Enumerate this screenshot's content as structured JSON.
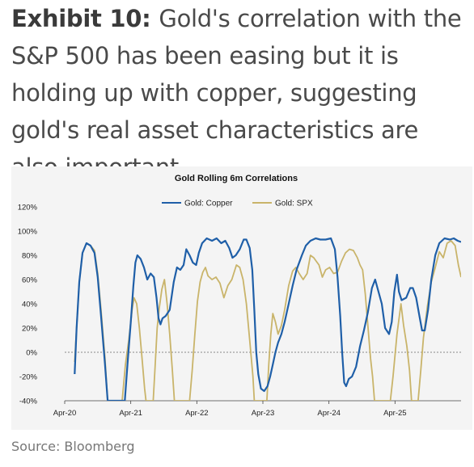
{
  "headline": {
    "exhibit": "Exhibit 10:",
    "text": "Gold's correlation with the S&P 500 has been easing but it is holding up with copper, suggesting gold's real asset characteristics are also important"
  },
  "source": "Source: Bloomberg",
  "chart_data": {
    "type": "line",
    "title": "Gold Rolling 6m Correlations",
    "ylim": [
      -40,
      120
    ],
    "y_ticks": [
      "120%",
      "100%",
      "80%",
      "60%",
      "40%",
      "20%",
      "0%",
      "-20%",
      "-40%"
    ],
    "x_ticks": [
      {
        "label": "Apr-20",
        "t": 2020.25
      },
      {
        "label": "Apr-21",
        "t": 2021.25
      },
      {
        "label": "Apr-22",
        "t": 2022.25
      },
      {
        "label": "Apr-23",
        "t": 2023.25
      },
      {
        "label": "Apr-24",
        "t": 2024.25
      },
      {
        "label": "Apr-25",
        "t": 2025.25
      }
    ],
    "xlim": [
      2020.25,
      2026.25
    ],
    "legend_position": "top-center",
    "colors": {
      "copper": "#1f5fa8",
      "spx": "#c9b46a"
    },
    "series": [
      {
        "name": "Gold: Copper",
        "points": [
          [
            2020.4,
            -18
          ],
          [
            2020.43,
            20
          ],
          [
            2020.47,
            58
          ],
          [
            2020.52,
            82
          ],
          [
            2020.58,
            90
          ],
          [
            2020.64,
            88
          ],
          [
            2020.7,
            82
          ],
          [
            2020.75,
            62
          ],
          [
            2020.8,
            30
          ],
          [
            2020.86,
            -10
          ],
          [
            2020.9,
            -40
          ],
          [
            2021.16,
            -40
          ],
          [
            2021.2,
            -10
          ],
          [
            2021.25,
            25
          ],
          [
            2021.29,
            55
          ],
          [
            2021.32,
            74
          ],
          [
            2021.35,
            80
          ],
          [
            2021.4,
            77
          ],
          [
            2021.45,
            70
          ],
          [
            2021.5,
            60
          ],
          [
            2021.55,
            65
          ],
          [
            2021.6,
            62
          ],
          [
            2021.64,
            45
          ],
          [
            2021.67,
            28
          ],
          [
            2021.7,
            23
          ],
          [
            2021.73,
            28
          ],
          [
            2021.78,
            30
          ],
          [
            2021.84,
            35
          ],
          [
            2021.9,
            58
          ],
          [
            2021.95,
            70
          ],
          [
            2022.0,
            68
          ],
          [
            2022.05,
            72
          ],
          [
            2022.09,
            85
          ],
          [
            2022.14,
            80
          ],
          [
            2022.19,
            74
          ],
          [
            2022.24,
            72
          ],
          [
            2022.28,
            82
          ],
          [
            2022.33,
            90
          ],
          [
            2022.4,
            94
          ],
          [
            2022.48,
            92
          ],
          [
            2022.55,
            94
          ],
          [
            2022.62,
            90
          ],
          [
            2022.68,
            92
          ],
          [
            2022.74,
            86
          ],
          [
            2022.79,
            78
          ],
          [
            2022.84,
            80
          ],
          [
            2022.9,
            85
          ],
          [
            2022.96,
            93
          ],
          [
            2023.0,
            93
          ],
          [
            2023.05,
            86
          ],
          [
            2023.09,
            68
          ],
          [
            2023.12,
            35
          ],
          [
            2023.15,
            0
          ],
          [
            2023.18,
            -18
          ],
          [
            2023.22,
            -30
          ],
          [
            2023.27,
            -32
          ],
          [
            2023.32,
            -28
          ],
          [
            2023.36,
            -20
          ],
          [
            2023.4,
            -10
          ],
          [
            2023.44,
            0
          ],
          [
            2023.48,
            8
          ],
          [
            2023.53,
            15
          ],
          [
            2023.58,
            25
          ],
          [
            2023.64,
            40
          ],
          [
            2023.7,
            55
          ],
          [
            2023.76,
            68
          ],
          [
            2023.84,
            80
          ],
          [
            2023.9,
            88
          ],
          [
            2023.97,
            92
          ],
          [
            2024.05,
            94
          ],
          [
            2024.12,
            93
          ],
          [
            2024.2,
            93
          ],
          [
            2024.28,
            94
          ],
          [
            2024.34,
            85
          ],
          [
            2024.38,
            62
          ],
          [
            2024.42,
            30
          ],
          [
            2024.45,
            0
          ],
          [
            2024.48,
            -25
          ],
          [
            2024.51,
            -28
          ],
          [
            2024.55,
            -22
          ],
          [
            2024.6,
            -20
          ],
          [
            2024.66,
            -12
          ],
          [
            2024.72,
            5
          ],
          [
            2024.78,
            18
          ],
          [
            2024.84,
            33
          ],
          [
            2024.9,
            53
          ],
          [
            2024.95,
            60
          ],
          [
            2025.0,
            50
          ],
          [
            2025.05,
            40
          ],
          [
            2025.1,
            20
          ],
          [
            2025.16,
            15
          ],
          [
            2025.2,
            25
          ],
          [
            2025.24,
            50
          ],
          [
            2025.28,
            64
          ],
          [
            2025.31,
            50
          ],
          [
            2025.35,
            43
          ],
          [
            2025.42,
            45
          ],
          [
            2025.48,
            53
          ],
          [
            2025.52,
            53
          ],
          [
            2025.57,
            45
          ],
          [
            2025.62,
            30
          ],
          [
            2025.66,
            18
          ],
          [
            2025.7,
            18
          ],
          [
            2025.75,
            35
          ],
          [
            2025.8,
            60
          ],
          [
            2025.86,
            80
          ],
          [
            2025.92,
            90
          ],
          [
            2026.0,
            94
          ],
          [
            2026.08,
            93
          ],
          [
            2026.14,
            94
          ],
          [
            2026.2,
            92
          ],
          [
            2026.25,
            91
          ]
        ]
      },
      {
        "name": "Gold: SPX",
        "points": [
          [
            2020.4,
            -8
          ],
          [
            2020.43,
            20
          ],
          [
            2020.47,
            58
          ],
          [
            2020.52,
            82
          ],
          [
            2020.58,
            90
          ],
          [
            2020.64,
            88
          ],
          [
            2020.7,
            84
          ],
          [
            2020.75,
            65
          ],
          [
            2020.8,
            35
          ],
          [
            2020.86,
            -5
          ],
          [
            2020.9,
            -40
          ],
          [
            2021.12,
            -40
          ],
          [
            2021.17,
            -10
          ],
          [
            2021.22,
            10
          ],
          [
            2021.27,
            35
          ],
          [
            2021.3,
            45
          ],
          [
            2021.34,
            40
          ],
          [
            2021.38,
            20
          ],
          [
            2021.42,
            -5
          ],
          [
            2021.46,
            -30
          ],
          [
            2021.48,
            -40
          ],
          [
            2021.59,
            -40
          ],
          [
            2021.62,
            -10
          ],
          [
            2021.65,
            20
          ],
          [
            2021.68,
            36
          ],
          [
            2021.72,
            52
          ],
          [
            2021.76,
            60
          ],
          [
            2021.8,
            40
          ],
          [
            2021.84,
            15
          ],
          [
            2021.88,
            -15
          ],
          [
            2021.91,
            -40
          ],
          [
            2022.14,
            -40
          ],
          [
            2022.18,
            -15
          ],
          [
            2022.22,
            15
          ],
          [
            2022.26,
            42
          ],
          [
            2022.3,
            58
          ],
          [
            2022.34,
            66
          ],
          [
            2022.38,
            70
          ],
          [
            2022.42,
            63
          ],
          [
            2022.48,
            60
          ],
          [
            2022.54,
            62
          ],
          [
            2022.6,
            57
          ],
          [
            2022.66,
            45
          ],
          [
            2022.72,
            55
          ],
          [
            2022.78,
            60
          ],
          [
            2022.85,
            72
          ],
          [
            2022.9,
            70
          ],
          [
            2022.95,
            60
          ],
          [
            2023.0,
            40
          ],
          [
            2023.05,
            10
          ],
          [
            2023.1,
            -20
          ],
          [
            2023.12,
            -40
          ],
          [
            2023.31,
            -40
          ],
          [
            2023.34,
            -10
          ],
          [
            2023.37,
            15
          ],
          [
            2023.4,
            32
          ],
          [
            2023.44,
            25
          ],
          [
            2023.48,
            15
          ],
          [
            2023.53,
            22
          ],
          [
            2023.58,
            35
          ],
          [
            2023.64,
            55
          ],
          [
            2023.7,
            67
          ],
          [
            2023.75,
            70
          ],
          [
            2023.8,
            65
          ],
          [
            2023.86,
            60
          ],
          [
            2023.92,
            65
          ],
          [
            2023.97,
            80
          ],
          [
            2024.02,
            78
          ],
          [
            2024.06,
            75
          ],
          [
            2024.1,
            72
          ],
          [
            2024.15,
            62
          ],
          [
            2024.2,
            68
          ],
          [
            2024.26,
            70
          ],
          [
            2024.32,
            65
          ],
          [
            2024.38,
            66
          ],
          [
            2024.44,
            75
          ],
          [
            2024.5,
            82
          ],
          [
            2024.56,
            85
          ],
          [
            2024.62,
            84
          ],
          [
            2024.68,
            78
          ],
          [
            2024.72,
            72
          ],
          [
            2024.76,
            68
          ],
          [
            2024.8,
            48
          ],
          [
            2024.84,
            22
          ],
          [
            2024.88,
            -5
          ],
          [
            2024.91,
            -20
          ],
          [
            2024.94,
            -40
          ],
          [
            2025.18,
            -40
          ],
          [
            2025.22,
            -20
          ],
          [
            2025.28,
            15
          ],
          [
            2025.34,
            40
          ],
          [
            2025.38,
            22
          ],
          [
            2025.43,
            5
          ],
          [
            2025.47,
            -15
          ],
          [
            2025.5,
            -40
          ],
          [
            2025.6,
            -40
          ],
          [
            2025.64,
            -15
          ],
          [
            2025.68,
            12
          ],
          [
            2025.74,
            38
          ],
          [
            2025.8,
            58
          ],
          [
            2025.86,
            70
          ],
          [
            2025.92,
            83
          ],
          [
            2025.98,
            78
          ],
          [
            2026.04,
            90
          ],
          [
            2026.1,
            92
          ],
          [
            2026.16,
            88
          ],
          [
            2026.21,
            72
          ],
          [
            2026.25,
            62
          ]
        ]
      }
    ]
  }
}
